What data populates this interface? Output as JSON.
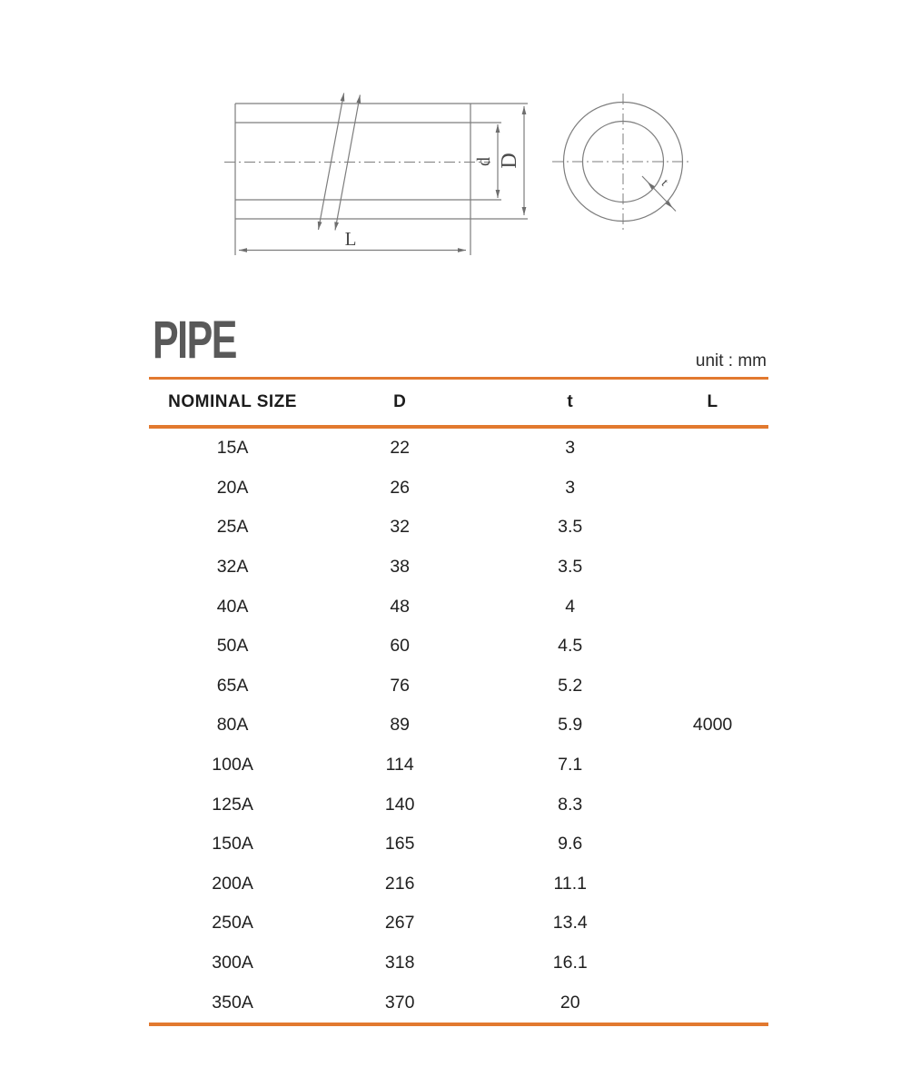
{
  "title": "PIPE",
  "unit_label": "unit : mm",
  "drawing": {
    "labels": {
      "inner_diameter": "d",
      "outer_diameter": "D",
      "length": "L",
      "wall_thickness": "t"
    }
  },
  "table": {
    "columns": [
      "NOMINAL SIZE",
      "D",
      "t",
      "L"
    ],
    "rows": [
      [
        "15A",
        "22",
        "3",
        ""
      ],
      [
        "20A",
        "26",
        "3",
        ""
      ],
      [
        "25A",
        "32",
        "3.5",
        ""
      ],
      [
        "32A",
        "38",
        "3.5",
        ""
      ],
      [
        "40A",
        "48",
        "4",
        ""
      ],
      [
        "50A",
        "60",
        "4.5",
        ""
      ],
      [
        "65A",
        "76",
        "5.2",
        ""
      ],
      [
        "80A",
        "89",
        "5.9",
        "4000"
      ],
      [
        "100A",
        "114",
        "7.1",
        ""
      ],
      [
        "125A",
        "140",
        "8.3",
        ""
      ],
      [
        "150A",
        "165",
        "9.6",
        ""
      ],
      [
        "200A",
        "216",
        "11.1",
        ""
      ],
      [
        "250A",
        "267",
        "13.4",
        ""
      ],
      [
        "300A",
        "318",
        "16.1",
        ""
      ],
      [
        "350A",
        "370",
        "20",
        ""
      ]
    ]
  },
  "colors": {
    "accent_orange": "#E2792F",
    "title_gray": "#595959",
    "text": "#1F1F1F",
    "drawing_line_gray": "#7D7D7D"
  }
}
